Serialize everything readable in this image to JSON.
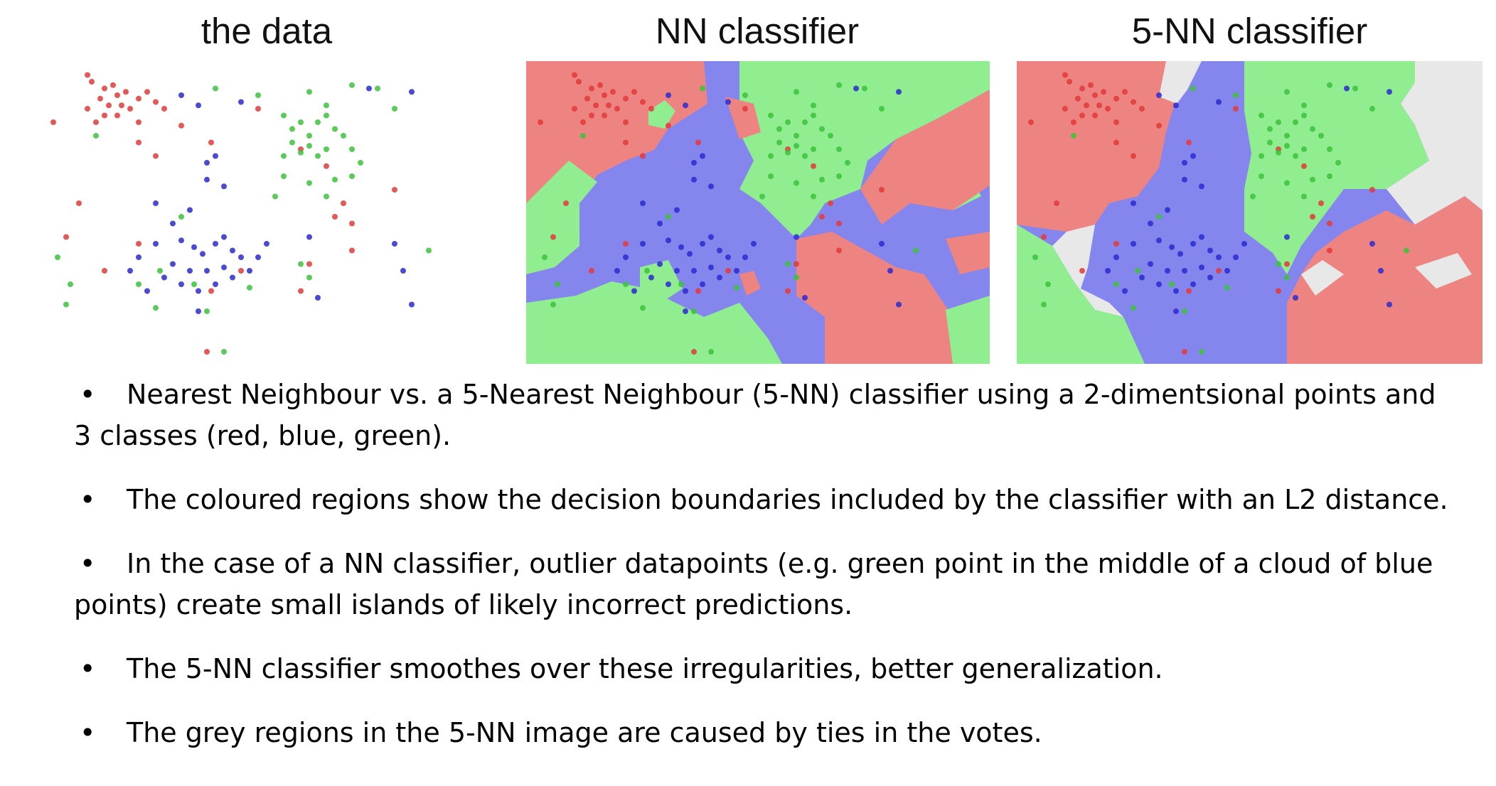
{
  "titles": {
    "data": "the data",
    "nn": "NN classifier",
    "knn": "5-NN classifier"
  },
  "colors": {
    "red_point": "#e23a3a",
    "green_point": "#3cc23c",
    "blue_point": "#2a2ad0",
    "red_region": "#ee8481",
    "green_region": "#90ee90",
    "blue_region": "#8585ee",
    "grey_region": "#e8e8e8"
  },
  "bullet_symbol": "•",
  "bullets": [
    "Nearest Neighbour vs. a 5-Nearest Neighbour (5-NN) classifier using a 2-dimentsional points and 3 classes (red, blue, green).",
    "The coloured regions show the decision boundaries included by the classifier with an L2 distance.",
    "In the case of a NN classifier, outlier datapoints (e.g. green point in the middle of a cloud of blue points) create small islands of likely incorrect predictions.",
    "The 5-NN classifier smoothes over these irregularities, better generalization.",
    "The grey regions in the 5-NN image are caused by ties in the votes."
  ]
}
